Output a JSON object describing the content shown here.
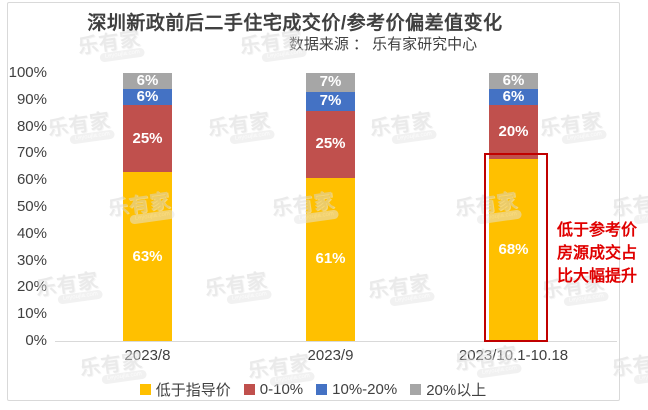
{
  "header": {
    "title": "深圳新政前后二手住宅成交价/参考价偏差值变化",
    "source": "数据来源 ： 乐有家研究中心"
  },
  "watermark": {
    "brand": "乐有家",
    "domain": "Leyoujia.com"
  },
  "annotation": {
    "text": "低于参考价\n房源成交占\n比大幅提升",
    "text_color": "#e00000",
    "box_color": "#c00000"
  },
  "colors": {
    "title_text": "#404040",
    "axis_text": "#404040",
    "axis_line": "#d9d9d9",
    "segment_label_text": "#ffffff",
    "frame_border": "#d9d9d9"
  },
  "chart_data": {
    "type": "bar",
    "stacked": true,
    "unit": "%",
    "title": "深圳新政前后二手住宅成交价/参考价偏差值变化",
    "categories": [
      "2023/8",
      "2023/9",
      "2023/10.1-10.18"
    ],
    "series": [
      {
        "name": "低于指导价",
        "color": "#FFC000",
        "values": [
          63,
          61,
          68
        ]
      },
      {
        "name": "0-10%",
        "color": "#C0504D",
        "values": [
          25,
          25,
          20
        ]
      },
      {
        "name": "10%-20%",
        "color": "#4472C4",
        "values": [
          6,
          7,
          6
        ]
      },
      {
        "name": "20%以上",
        "color": "#A6A6A6",
        "values": [
          6,
          7,
          6
        ]
      }
    ],
    "ylim": [
      0,
      100
    ],
    "ytick_labels": [
      "0%",
      "10%",
      "20%",
      "30%",
      "40%",
      "50%",
      "60%",
      "70%",
      "80%",
      "90%",
      "100%"
    ],
    "grid": false,
    "legend_position": "bottom",
    "highlighted_segment": {
      "category": "2023/10.1-10.18",
      "series": "低于指导价",
      "value": 68
    }
  }
}
